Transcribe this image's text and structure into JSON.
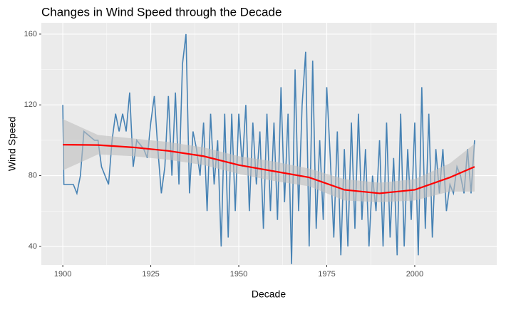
{
  "chart_data": {
    "type": "line",
    "title": "Changes in Wind Speed through the Decade",
    "x_label": "Decade",
    "y_label": "Wind Speed",
    "xlim": [
      1893.9,
      2023.3
    ],
    "ylim": [
      29.5,
      166.4
    ],
    "xticks": [
      1900,
      1925,
      1950,
      1975,
      2000
    ],
    "yticks": [
      40,
      80,
      120,
      160
    ],
    "grid": true,
    "series": [
      {
        "name": "Wind Speed",
        "color": "#4682b4",
        "x": [
          1900,
          1900.3,
          1903,
          1904,
          1905,
          1906,
          1909,
          1910,
          1911,
          1913,
          1914,
          1915,
          1916,
          1917,
          1918,
          1919,
          1920,
          1921,
          1923,
          1924,
          1925,
          1926,
          1927,
          1928,
          1929,
          1930,
          1931,
          1932,
          1933,
          1934,
          1935,
          1936,
          1937,
          1938,
          1939,
          1940,
          1941,
          1942,
          1943,
          1944,
          1945,
          1946,
          1947,
          1948,
          1949,
          1950,
          1951,
          1952,
          1953,
          1954,
          1955,
          1956,
          1957,
          1958,
          1959,
          1960,
          1961,
          1962,
          1963,
          1964,
          1965,
          1966,
          1967,
          1968,
          1969,
          1970,
          1971,
          1972,
          1973,
          1974,
          1975,
          1976,
          1977,
          1978,
          1979,
          1980,
          1981,
          1982,
          1983,
          1984,
          1985,
          1986,
          1987,
          1988,
          1989,
          1990,
          1991,
          1992,
          1993,
          1994,
          1995,
          1996,
          1997,
          1998,
          1999,
          2000,
          2001,
          2002,
          2003,
          2004,
          2005,
          2006,
          2007,
          2008,
          2009,
          2010,
          2011,
          2012,
          2013,
          2014,
          2015,
          2016,
          2017
        ],
        "values": [
          120,
          75,
          75,
          70,
          80,
          105,
          100,
          100,
          85,
          75,
          100,
          115,
          105,
          115,
          105,
          127,
          85,
          100,
          95,
          90,
          110,
          125,
          95,
          70,
          85,
          125,
          80,
          127,
          75,
          143,
          160,
          70,
          105,
          95,
          80,
          110,
          60,
          115,
          75,
          100,
          40,
          115,
          45,
          115,
          60,
          115,
          85,
          120,
          60,
          110,
          75,
          105,
          50,
          115,
          60,
          110,
          55,
          130,
          65,
          115,
          30,
          140,
          60,
          120,
          150,
          40,
          145,
          50,
          100,
          55,
          130,
          90,
          45,
          105,
          35,
          95,
          40,
          110,
          50,
          115,
          55,
          95,
          40,
          80,
          60,
          100,
          40,
          110,
          45,
          90,
          35,
          115,
          40,
          95,
          55,
          110,
          35,
          130,
          50,
          115,
          45,
          95,
          70,
          95,
          60,
          75,
          70,
          85,
          80,
          70,
          95,
          70,
          100
        ]
      }
    ],
    "smooth": {
      "color": "#ff0000",
      "band_color": "#bebebe",
      "x": [
        1900,
        1910,
        1920,
        1930,
        1940,
        1950,
        1960,
        1970,
        1980,
        1990,
        2000,
        2010,
        2017
      ],
      "values": [
        97.5,
        97.3,
        96,
        94,
        91,
        86,
        82.5,
        79,
        72,
        70,
        72,
        79,
        85
      ],
      "lower": [
        83,
        92,
        91,
        89,
        86,
        81,
        77,
        74,
        66,
        65,
        66,
        71,
        71
      ],
      "upper": [
        112,
        103,
        101,
        99,
        96,
        91,
        88,
        84,
        78,
        76,
        78,
        87,
        98
      ]
    }
  }
}
